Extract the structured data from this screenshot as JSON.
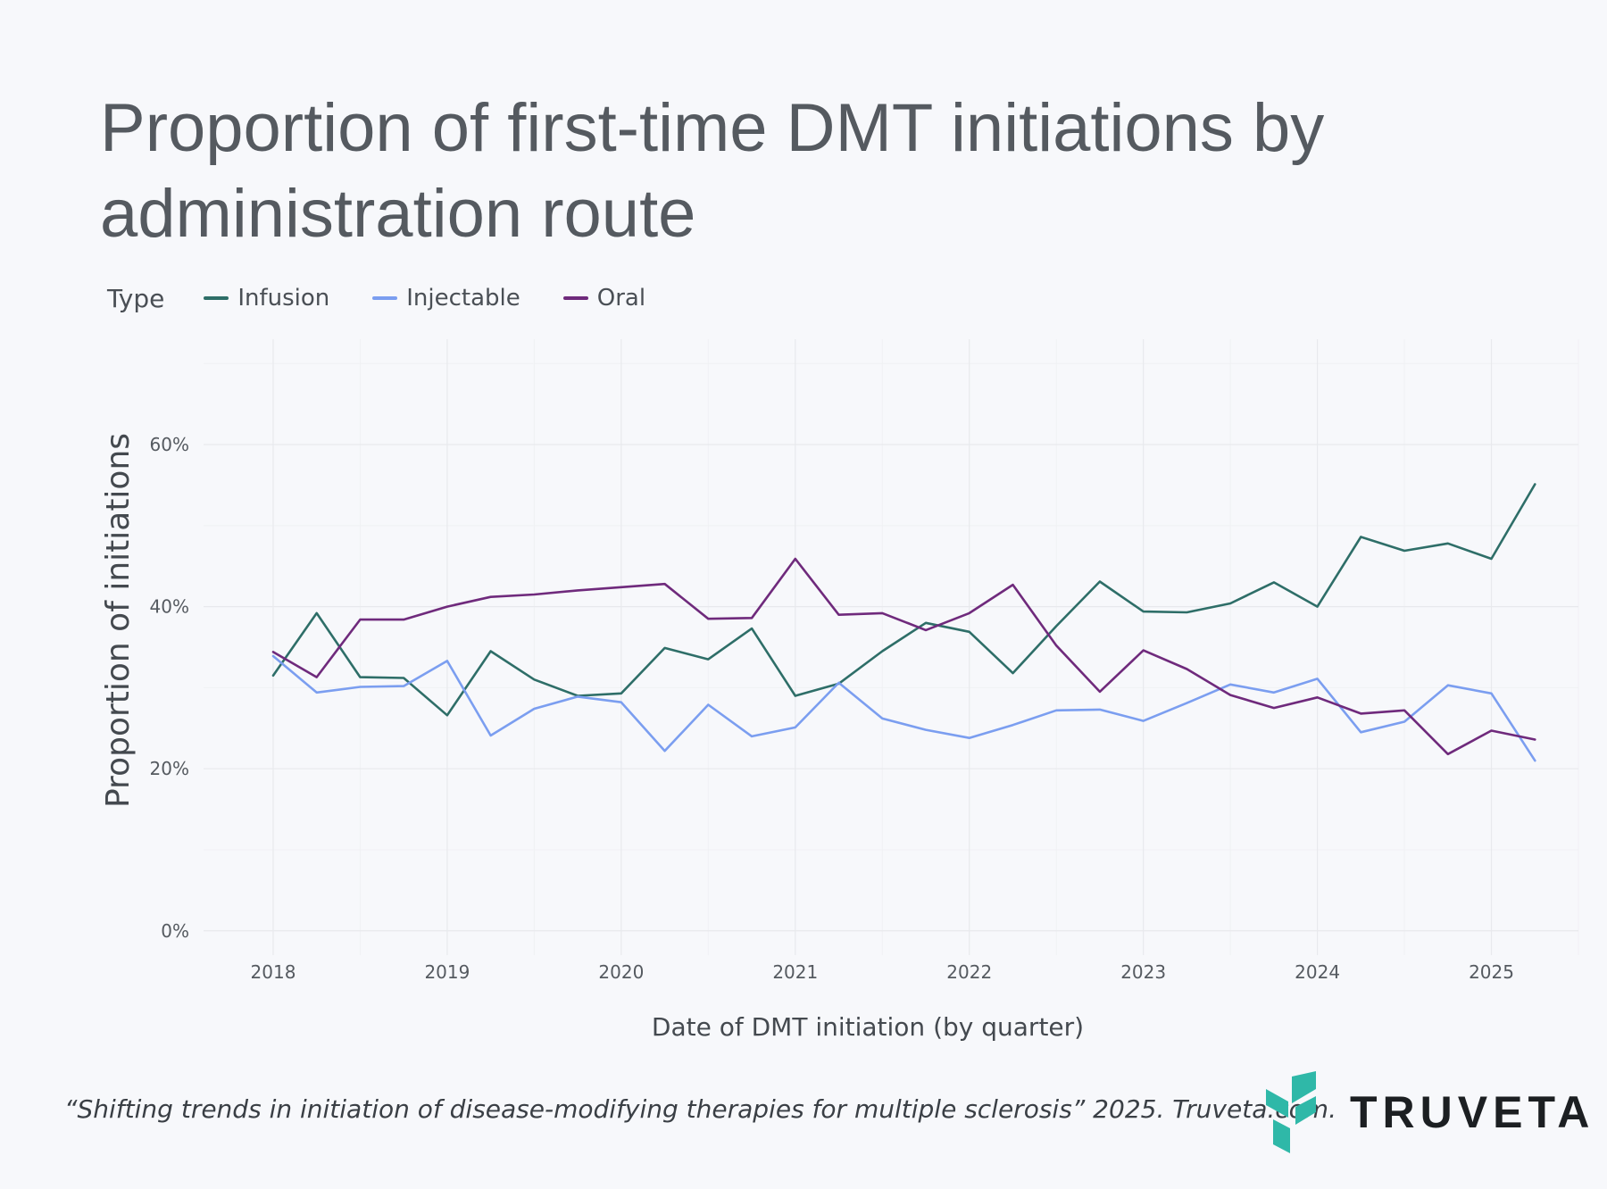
{
  "title": "Proportion of first-time DMT initiations by administration route",
  "legend": {
    "title": "Type",
    "items": [
      {
        "label": "Infusion",
        "color": "#2e6e68"
      },
      {
        "label": "Injectable",
        "color": "#7b9ef0"
      },
      {
        "label": "Oral",
        "color": "#6f2a7c"
      }
    ]
  },
  "footer": {
    "citation": "“Shifting trends in initiation of disease-modifying therapies for multiple sclerosis” 2025. Truveta.com.",
    "brand": "TRUVETA"
  },
  "chart_data": {
    "type": "line",
    "title": "Proportion of first-time DMT initiations by administration route",
    "xlabel": "Date of DMT initiation (by quarter)",
    "ylabel": "Proportion of initiations",
    "x": [
      2018.0,
      2018.25,
      2018.5,
      2018.75,
      2019.0,
      2019.25,
      2019.5,
      2019.75,
      2020.0,
      2020.25,
      2020.5,
      2020.75,
      2021.0,
      2021.25,
      2021.5,
      2021.75,
      2022.0,
      2022.25,
      2022.5,
      2022.75,
      2023.0,
      2023.25,
      2023.5,
      2023.75,
      2024.0,
      2024.25,
      2024.5,
      2024.75,
      2025.0,
      2025.25
    ],
    "xticks": [
      2018,
      2019,
      2020,
      2021,
      2022,
      2023,
      2024,
      2025
    ],
    "xtick_labels": [
      "2018",
      "2019",
      "2020",
      "2021",
      "2022",
      "2023",
      "2024",
      "2025"
    ],
    "xlim": [
      2017.6,
      2025.5
    ],
    "yticks": [
      0,
      20,
      40,
      60
    ],
    "ytick_labels": [
      "0%",
      "20%",
      "40%",
      "60%"
    ],
    "ylim": [
      -3,
      73
    ],
    "grid": true,
    "series": [
      {
        "name": "Infusion",
        "color": "#2e6e68",
        "values": [
          31.5,
          39.2,
          31.3,
          31.2,
          26.6,
          34.5,
          31.0,
          29.0,
          29.3,
          34.9,
          33.5,
          37.3,
          29.0,
          30.5,
          34.5,
          38.0,
          36.9,
          31.8,
          37.6,
          43.1,
          39.4,
          39.3,
          40.4,
          43.0,
          40.0,
          48.6,
          46.9,
          47.8,
          45.9,
          55.1
        ]
      },
      {
        "name": "Injectable",
        "color": "#7b9ef0",
        "values": [
          33.9,
          29.4,
          30.1,
          30.2,
          33.3,
          24.1,
          27.4,
          28.9,
          28.2,
          22.2,
          27.9,
          24.0,
          25.1,
          30.6,
          26.2,
          24.8,
          23.8,
          25.4,
          27.2,
          27.3,
          25.9,
          28.1,
          30.4,
          29.4,
          31.1,
          24.5,
          25.8,
          30.3,
          29.3,
          21.0
        ]
      },
      {
        "name": "Oral",
        "color": "#6f2a7c",
        "values": [
          34.4,
          31.3,
          38.4,
          38.4,
          40.0,
          41.2,
          41.5,
          42.0,
          42.4,
          42.8,
          38.5,
          38.6,
          45.9,
          39.0,
          39.2,
          37.1,
          39.2,
          42.7,
          35.2,
          29.5,
          34.6,
          32.3,
          29.1,
          27.5,
          28.8,
          26.8,
          27.2,
          21.8,
          24.7,
          23.6
        ]
      }
    ]
  }
}
